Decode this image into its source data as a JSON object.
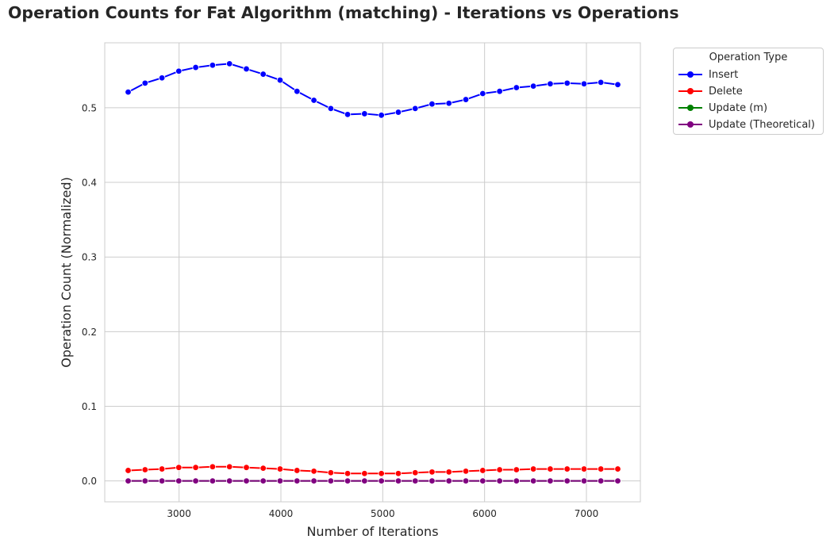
{
  "chart_data": {
    "type": "line",
    "title": "Operation Counts for Fat Algorithm (matching) - Iterations vs Operations",
    "xlabel": "Number of Iterations",
    "ylabel": "Operation Count (Normalized)",
    "xlim": [
      2270,
      7530
    ],
    "ylim": [
      -0.028,
      0.587
    ],
    "xticks": [
      3000,
      4000,
      5000,
      6000,
      7000
    ],
    "yticks": [
      0.0,
      0.1,
      0.2,
      0.3,
      0.4,
      0.5
    ],
    "ytick_labels": [
      "0.0",
      "0.1",
      "0.2",
      "0.3",
      "0.4",
      "0.5"
    ],
    "grid": true,
    "legend": {
      "title": "Operation Type",
      "placement": "outside-top-right"
    },
    "x": [
      2500,
      2666,
      2832,
      2997,
      3163,
      3329,
      3495,
      3661,
      3826,
      3992,
      4158,
      4324,
      4490,
      4655,
      4821,
      4987,
      5153,
      5319,
      5484,
      5650,
      5816,
      5982,
      6148,
      6313,
      6479,
      6645,
      6811,
      6977,
      7142,
      7308
    ],
    "series": [
      {
        "name": "Insert",
        "color": "#0000ff",
        "values": [
          0.521,
          0.533,
          0.54,
          0.549,
          0.554,
          0.557,
          0.559,
          0.552,
          0.545,
          0.537,
          0.522,
          0.51,
          0.499,
          0.491,
          0.492,
          0.49,
          0.494,
          0.499,
          0.505,
          0.506,
          0.511,
          0.519,
          0.522,
          0.527,
          0.529,
          0.532,
          0.533,
          0.532,
          0.534,
          0.531
        ]
      },
      {
        "name": "Delete",
        "color": "#ff0000",
        "values": [
          0.014,
          0.015,
          0.016,
          0.018,
          0.018,
          0.019,
          0.019,
          0.018,
          0.017,
          0.016,
          0.014,
          0.013,
          0.011,
          0.01,
          0.01,
          0.01,
          0.01,
          0.011,
          0.012,
          0.012,
          0.013,
          0.014,
          0.015,
          0.015,
          0.016,
          0.016,
          0.016,
          0.016,
          0.016,
          0.016
        ]
      },
      {
        "name": "Update (m)",
        "color": "#008000",
        "values": [
          0,
          0,
          0,
          0,
          0,
          0,
          0,
          0,
          0,
          0,
          0,
          0,
          0,
          0,
          0,
          0,
          0,
          0,
          0,
          0,
          0,
          0,
          0,
          0,
          0,
          0,
          0,
          0,
          0,
          0
        ]
      },
      {
        "name": "Update (Theoretical)",
        "color": "#800080",
        "values": [
          0,
          0,
          0,
          0,
          0,
          0,
          0,
          0,
          0,
          0,
          0,
          0,
          0,
          0,
          0,
          0,
          0,
          0,
          0,
          0,
          0,
          0,
          0,
          0,
          0,
          0,
          0,
          0,
          0,
          0
        ]
      }
    ]
  }
}
